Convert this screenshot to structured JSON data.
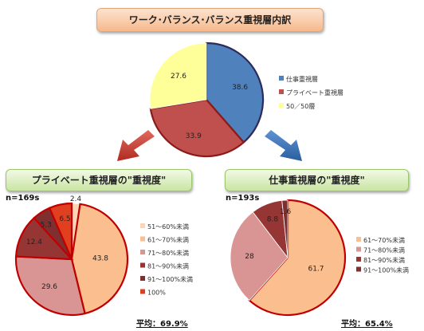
{
  "titles": {
    "main": "ワーク･バランス･バランス重視層内訳",
    "left": "プライベート重視層の\"重視度\"",
    "right": "仕事重視層の\"重視度\""
  },
  "colors": {
    "blue": "#4f81bd",
    "red": "#c0504d",
    "yellow": "#ffff99",
    "c51_60": "#fcd5b4",
    "c61_70": "#fbbf8f",
    "c71_80": "#d99594",
    "c81_90": "#963634",
    "c91_100": "#7f2f2f",
    "c100": "#e04020"
  },
  "chart_data": [
    {
      "type": "pie",
      "title": "ワーク･バランス･バランス重視層内訳",
      "labels": [
        "仕事重視層",
        "プライベート重視層",
        "50／50層"
      ],
      "values": [
        38.6,
        33.9,
        27.6
      ],
      "legend": "right"
    },
    {
      "type": "pie",
      "title": "プライベート重視層の\"重視度\"",
      "n_label": "n=169s",
      "labels": [
        "51～60%未満",
        "61～70%未満",
        "71～80%未満",
        "81～90%未満",
        "91～100%未満",
        "100%"
      ],
      "values": [
        2.4,
        43.8,
        29.6,
        12.4,
        5.3,
        6.5
      ],
      "legend": "right",
      "average": "平均：69.9%"
    },
    {
      "type": "pie",
      "title": "仕事重視層の\"重視度\"",
      "n_label": "n=193s",
      "labels": [
        "61～70%未満",
        "71～80%未満",
        "81～90%未満",
        "91～100%未満"
      ],
      "values": [
        61.7,
        28.0,
        8.8,
        1.6
      ],
      "legend": "right",
      "average": "平均：65.4%"
    }
  ]
}
